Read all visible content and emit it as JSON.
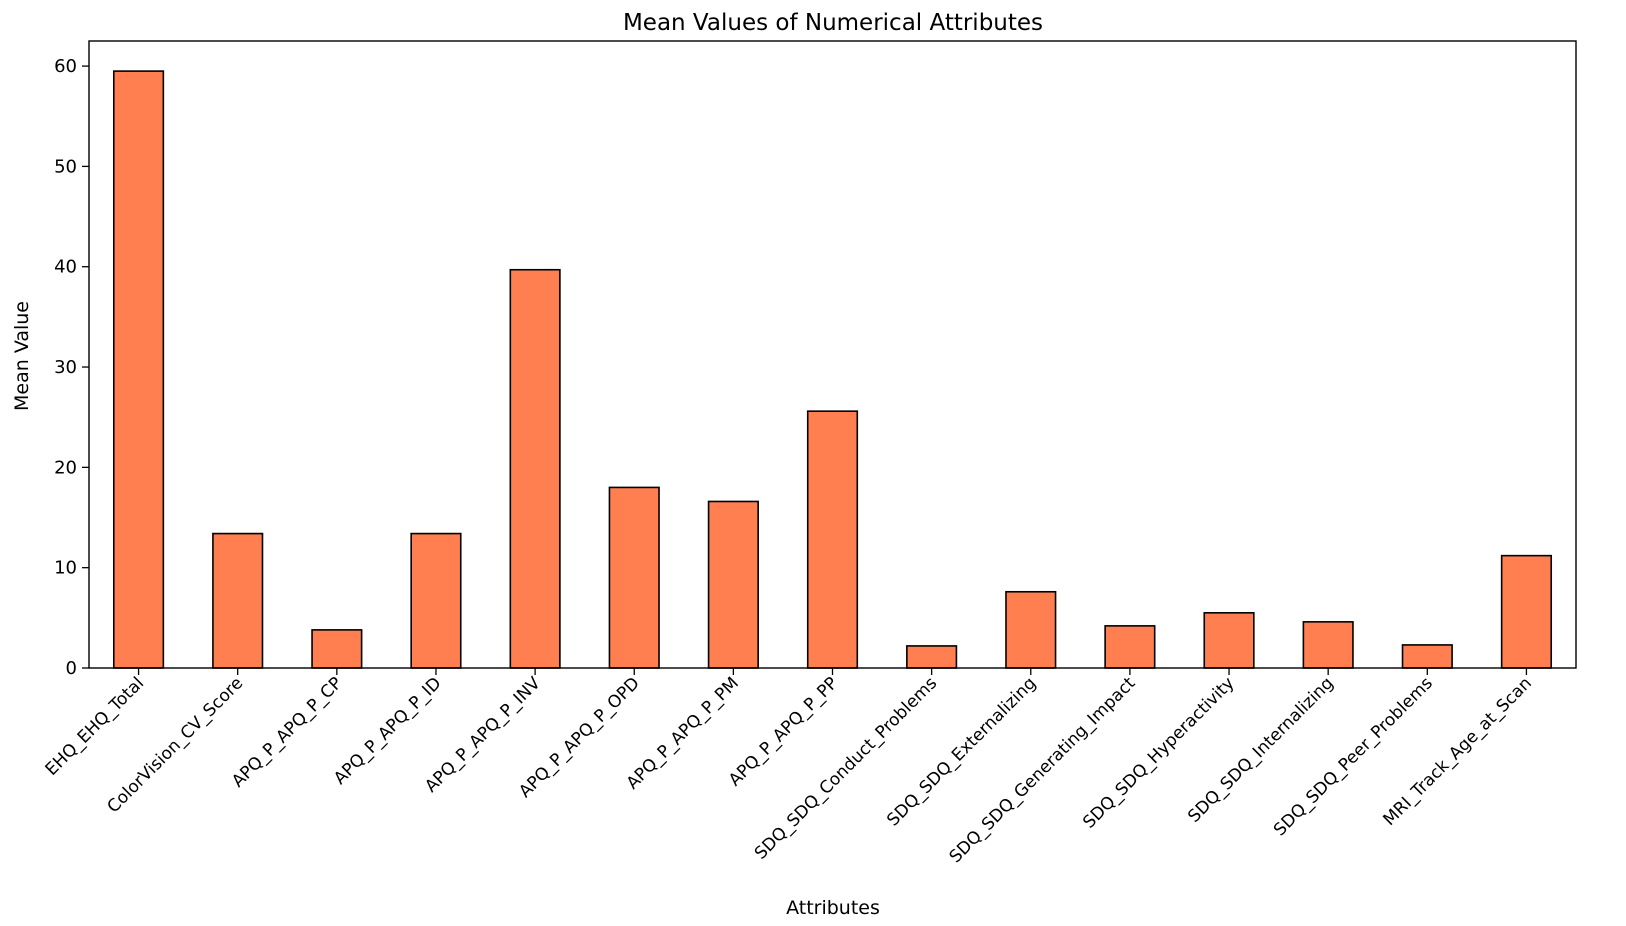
{
  "colors": {
    "bar_fill": "#FF7F50",
    "bar_edge": "#000000",
    "axis": "#000000",
    "background": "#ffffff"
  },
  "chart_data": {
    "type": "bar",
    "title": "Mean Values of Numerical Attributes",
    "xlabel": "Attributes",
    "ylabel": "Mean Value",
    "ylim": [
      0,
      62.5
    ],
    "yticks": [
      0,
      10,
      20,
      30,
      40,
      50,
      60
    ],
    "grid": false,
    "legend": "none",
    "categories": [
      "EHQ_EHQ_Total",
      "ColorVision_CV_Score",
      "APQ_P_APQ_P_CP",
      "APQ_P_APQ_P_ID",
      "APQ_P_APQ_P_INV",
      "APQ_P_APQ_P_OPD",
      "APQ_P_APQ_P_PM",
      "APQ_P_APQ_P_PP",
      "SDQ_SDQ_Conduct_Problems",
      "SDQ_SDQ_Externalizing",
      "SDQ_SDQ_Generating_Impact",
      "SDQ_SDQ_Hyperactivity",
      "SDQ_SDQ_Internalizing",
      "SDQ_SDQ_Peer_Problems",
      "MRI_Track_Age_at_Scan"
    ],
    "values": [
      59.5,
      13.4,
      3.8,
      13.4,
      39.7,
      18.0,
      16.6,
      25.6,
      2.2,
      7.6,
      4.2,
      5.5,
      4.6,
      2.3,
      11.2
    ]
  }
}
